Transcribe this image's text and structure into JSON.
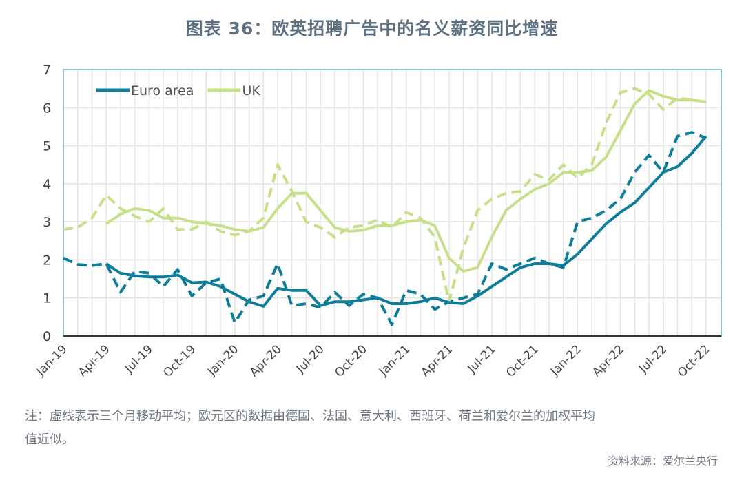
{
  "chart_data": {
    "type": "line",
    "title": "图表 36：欧英招聘广告中的名义薪资同比增速",
    "xlabel": "",
    "ylabel": "",
    "ylim": [
      0,
      7
    ],
    "yticks": [
      "0",
      "1",
      "2",
      "3",
      "4",
      "5",
      "6",
      "7"
    ],
    "grid": true,
    "legend_position": "top-left",
    "x": [
      "Jan-19",
      "Feb-19",
      "Mar-19",
      "Apr-19",
      "May-19",
      "Jun-19",
      "Jul-19",
      "Aug-19",
      "Sep-19",
      "Oct-19",
      "Nov-19",
      "Dec-19",
      "Jan-20",
      "Feb-20",
      "Mar-20",
      "Apr-20",
      "May-20",
      "Jun-20",
      "Jul-20",
      "Aug-20",
      "Sep-20",
      "Oct-20",
      "Nov-20",
      "Dec-20",
      "Jan-21",
      "Feb-21",
      "Mar-21",
      "Apr-21",
      "May-21",
      "Jun-21",
      "Jul-21",
      "Aug-21",
      "Sep-21",
      "Oct-21",
      "Nov-21",
      "Dec-21",
      "Jan-22",
      "Feb-22",
      "Mar-22",
      "Apr-22",
      "May-22",
      "Jun-22",
      "Jul-22",
      "Aug-22",
      "Sep-22",
      "Oct-22"
    ],
    "xtick_labels": [
      "Jan-19",
      "Apr-19",
      "Jul-19",
      "Oct-19",
      "Jan-20",
      "Apr-20",
      "Jul-20",
      "Oct-20",
      "Jan-21",
      "Apr-21",
      "Jul-21",
      "Oct-21",
      "Jan-22",
      "Apr-22",
      "Jul-22",
      "Oct-22"
    ],
    "series": [
      {
        "name": "Euro area",
        "style": "solid",
        "color": "#0e7d99",
        "values": [
          null,
          null,
          null,
          1.9,
          1.65,
          1.58,
          1.55,
          1.55,
          1.6,
          1.4,
          1.42,
          1.3,
          1.1,
          0.9,
          0.78,
          1.25,
          1.2,
          1.2,
          0.8,
          0.9,
          0.9,
          0.95,
          1.0,
          0.85,
          0.85,
          0.9,
          1.0,
          0.88,
          0.85,
          1.05,
          1.3,
          1.55,
          1.8,
          1.9,
          1.9,
          1.85,
          2.15,
          2.55,
          2.95,
          3.25,
          3.5,
          3.9,
          4.3,
          4.45,
          4.8,
          5.25
        ]
      },
      {
        "name": "UK",
        "style": "solid",
        "color": "#c8df8a",
        "values": [
          null,
          null,
          null,
          2.95,
          3.2,
          3.35,
          3.3,
          3.1,
          3.1,
          3.0,
          2.95,
          2.9,
          2.8,
          2.75,
          2.85,
          3.35,
          3.75,
          3.75,
          3.3,
          2.85,
          2.75,
          2.78,
          2.9,
          2.9,
          3.0,
          3.05,
          2.9,
          2.05,
          1.7,
          1.8,
          2.6,
          3.3,
          3.6,
          3.85,
          4.0,
          4.3,
          4.3,
          4.35,
          4.7,
          5.4,
          6.1,
          6.45,
          6.3,
          6.2,
          6.2,
          6.15
        ]
      },
      {
        "style": "dashed",
        "color": "#0e7d99",
        "values": [
          2.05,
          1.88,
          1.85,
          1.9,
          1.15,
          1.7,
          1.65,
          1.3,
          1.75,
          1.05,
          1.4,
          1.5,
          0.35,
          0.95,
          1.05,
          1.9,
          0.8,
          0.85,
          0.75,
          1.15,
          0.8,
          1.1,
          1.0,
          0.3,
          1.2,
          1.1,
          0.7,
          0.9,
          1.0,
          1.1,
          1.9,
          1.75,
          1.9,
          2.05,
          1.9,
          1.8,
          3.0,
          3.1,
          3.3,
          3.6,
          4.3,
          4.75,
          4.3,
          5.25,
          5.35,
          5.2
        ]
      },
      {
        "style": "dashed",
        "color": "#c8df8a",
        "values": [
          2.8,
          2.85,
          3.1,
          3.7,
          3.35,
          3.15,
          3.0,
          3.35,
          2.8,
          2.8,
          3.0,
          2.75,
          2.65,
          2.75,
          3.1,
          4.5,
          3.8,
          3.0,
          2.85,
          2.6,
          2.85,
          2.9,
          3.05,
          2.85,
          3.25,
          3.1,
          2.6,
          0.9,
          2.3,
          3.3,
          3.6,
          3.75,
          3.8,
          4.25,
          4.1,
          4.5,
          4.15,
          4.5,
          5.6,
          6.4,
          6.5,
          6.35,
          5.95,
          6.25,
          6.2,
          6.15
        ]
      }
    ]
  },
  "note_line1": "注：虚线表示三个月移动平均；欧元区的数据由德国、法国、意大利、西班牙、荷兰和爱尔兰的加权平均",
  "note_line2": "值近似。",
  "source": "资料来源：爱尔兰央行",
  "colors": {
    "frame": "#8cc3d1",
    "grid": "#e4e4e4",
    "axis": "#333333",
    "title": "#5e7183"
  }
}
